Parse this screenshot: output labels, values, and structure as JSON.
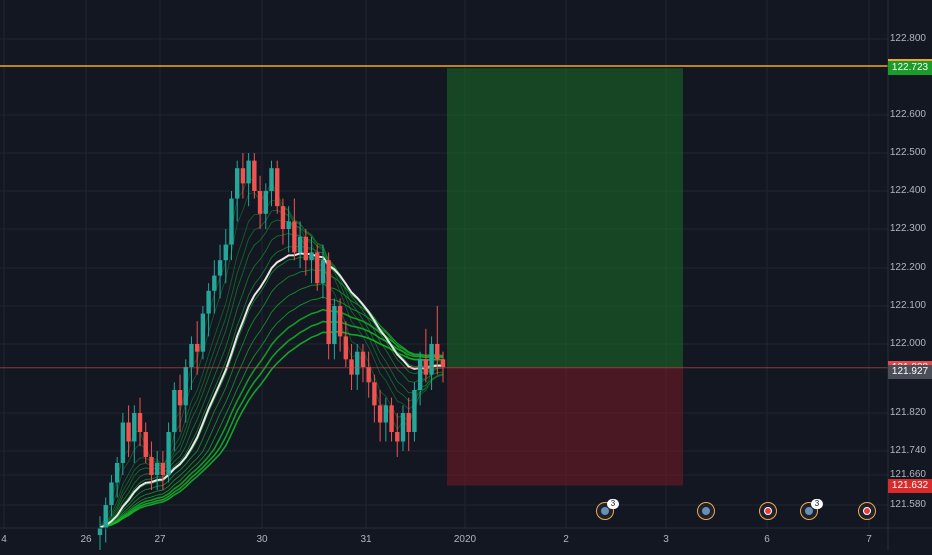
{
  "chart_data": {
    "type": "candlestick",
    "y_ticks": [
      "122.800",
      "122.600",
      "122.500",
      "122.400",
      "122.300",
      "122.200",
      "122.100",
      "122.000",
      "121.820",
      "121.740",
      "121.660",
      "121.580"
    ],
    "x_ticks": [
      "4",
      "26",
      "27",
      "30",
      "31",
      "2020",
      "2",
      "3",
      "6",
      "7"
    ],
    "price_labels": [
      {
        "value": "122.729",
        "color": "#f5a623",
        "kind": "horizontal-line"
      },
      {
        "value": "122.723",
        "color": "#1a9b2a",
        "kind": "take-profit"
      },
      {
        "value": "121.938",
        "color": "#e04a4a",
        "kind": "entry"
      },
      {
        "value": "121.927",
        "color": "#4a4e58",
        "kind": "current-price"
      },
      {
        "value": "121.632",
        "color": "#d92b2b",
        "kind": "stop-loss"
      }
    ],
    "horizontal_line": 122.729,
    "long_position": {
      "entry": 121.938,
      "take_profit": 122.723,
      "stop_loss": 121.632
    },
    "candles": [
      [
        121.5,
        121.55,
        121.45,
        121.52
      ],
      [
        121.52,
        121.6,
        121.48,
        121.58
      ],
      [
        121.58,
        121.66,
        121.55,
        121.64
      ],
      [
        121.64,
        121.72,
        121.6,
        121.7
      ],
      [
        121.7,
        121.82,
        121.66,
        121.8
      ],
      [
        121.8,
        121.84,
        121.72,
        121.76
      ],
      [
        121.76,
        121.84,
        121.7,
        121.82
      ],
      [
        121.82,
        121.86,
        121.75,
        121.78
      ],
      [
        121.78,
        121.8,
        121.7,
        121.72
      ],
      [
        121.72,
        121.76,
        121.62,
        121.66
      ],
      [
        121.66,
        121.74,
        121.62,
        121.7
      ],
      [
        121.7,
        121.74,
        121.62,
        121.66
      ],
      [
        121.66,
        121.8,
        121.64,
        121.78
      ],
      [
        121.78,
        121.9,
        121.74,
        121.88
      ],
      [
        121.88,
        121.92,
        121.78,
        121.84
      ],
      [
        121.84,
        121.96,
        121.8,
        121.94
      ],
      [
        121.94,
        122.02,
        121.88,
        122.0
      ],
      [
        122.0,
        122.06,
        121.92,
        121.98
      ],
      [
        121.98,
        122.1,
        121.96,
        122.08
      ],
      [
        122.08,
        122.16,
        122.02,
        122.14
      ],
      [
        122.14,
        122.22,
        122.08,
        122.18
      ],
      [
        122.18,
        122.26,
        122.12,
        122.22
      ],
      [
        122.22,
        122.3,
        122.16,
        122.26
      ],
      [
        122.26,
        122.4,
        122.22,
        122.38
      ],
      [
        122.38,
        122.48,
        122.32,
        122.46
      ],
      [
        122.46,
        122.5,
        122.38,
        122.42
      ],
      [
        122.42,
        122.5,
        122.36,
        122.48
      ],
      [
        122.48,
        122.5,
        122.38,
        122.4
      ],
      [
        122.4,
        122.44,
        122.3,
        122.34
      ],
      [
        122.34,
        122.42,
        122.3,
        122.4
      ],
      [
        122.4,
        122.48,
        122.36,
        122.46
      ],
      [
        122.46,
        122.48,
        122.34,
        122.36
      ],
      [
        122.36,
        122.38,
        122.26,
        122.3
      ],
      [
        122.3,
        122.36,
        122.24,
        122.32
      ],
      [
        122.32,
        122.38,
        122.22,
        122.24
      ],
      [
        122.24,
        122.32,
        122.2,
        122.28
      ],
      [
        122.28,
        122.3,
        122.18,
        122.22
      ],
      [
        122.22,
        122.28,
        122.16,
        122.24
      ],
      [
        122.24,
        122.26,
        122.14,
        122.16
      ],
      [
        122.16,
        122.26,
        122.12,
        122.22
      ],
      [
        122.22,
        122.24,
        121.96,
        122.0
      ],
      [
        122.0,
        122.12,
        121.96,
        122.1
      ],
      [
        122.1,
        122.12,
        121.98,
        122.02
      ],
      [
        122.02,
        122.06,
        121.94,
        121.96
      ],
      [
        121.96,
        122.0,
        121.88,
        121.92
      ],
      [
        121.92,
        122.0,
        121.88,
        121.98
      ],
      [
        121.98,
        122.0,
        121.9,
        121.94
      ],
      [
        121.94,
        121.98,
        121.86,
        121.9
      ],
      [
        121.9,
        121.92,
        121.8,
        121.84
      ],
      [
        121.84,
        121.88,
        121.76,
        121.8
      ],
      [
        121.8,
        121.86,
        121.76,
        121.84
      ],
      [
        121.84,
        121.86,
        121.76,
        121.78
      ],
      [
        121.78,
        121.82,
        121.72,
        121.76
      ],
      [
        121.76,
        121.84,
        121.74,
        121.82
      ],
      [
        121.82,
        121.86,
        121.74,
        121.78
      ],
      [
        121.78,
        121.9,
        121.76,
        121.88
      ],
      [
        121.88,
        121.98,
        121.84,
        121.96
      ],
      [
        121.96,
        122.04,
        121.9,
        121.92
      ],
      [
        121.92,
        122.02,
        121.88,
        122.0
      ],
      [
        122.0,
        122.1,
        121.92,
        121.96
      ],
      [
        121.96,
        121.98,
        121.9,
        121.94
      ]
    ]
  }
}
